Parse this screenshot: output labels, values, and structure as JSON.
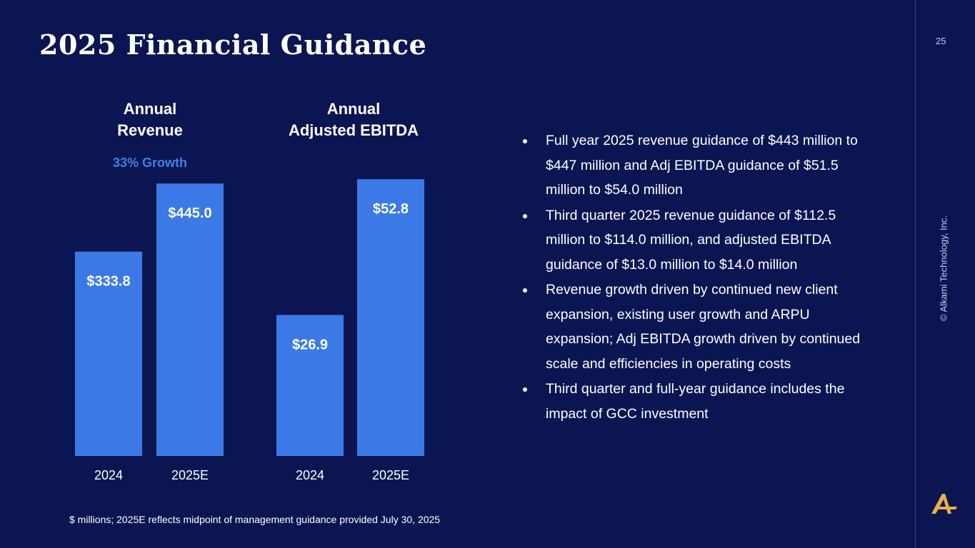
{
  "slide": {
    "title": "2025 Financial Guidance",
    "page_number": "25",
    "copyright": "© Alkami Technology, Inc.",
    "footnote": "$ millions; 2025E reflects midpoint of management guidance provided July 30, 2025",
    "logo_icon": "alkami-logo-icon"
  },
  "colors": {
    "background": "#0b1552",
    "bar": "#3b7ae6",
    "growth_text": "#3b82e6",
    "logo": "#e9b046"
  },
  "bullets": [
    "Full year 2025 revenue guidance of $443 million to $447 million and Adj EBITDA guidance of $51.5 million to $54.0 million",
    "Third quarter 2025 revenue guidance of $112.5 million to $114.0 million, and adjusted EBITDA guidance of $13.0 million to $14.0 million",
    "Revenue growth driven by continued new client expansion, existing user growth and ARPU expansion; Adj EBITDA growth driven by continued scale and efficiencies in operating costs",
    "Third quarter and full-year guidance includes the impact of GCC investment"
  ],
  "chart_data": [
    {
      "type": "bar",
      "title_lines": [
        "Annual",
        "Revenue"
      ],
      "annotation": "33% Growth",
      "categories": [
        "2024",
        "2025E"
      ],
      "values": [
        333.8,
        445.0
      ],
      "value_labels": [
        "$333.8",
        "$445.0"
      ],
      "units": "$ millions",
      "ylim": [
        0,
        535
      ]
    },
    {
      "type": "bar",
      "title_lines": [
        "Annual",
        "Adjusted EBITDA"
      ],
      "categories": [
        "2024",
        "2025E"
      ],
      "values": [
        26.9,
        52.8
      ],
      "value_labels": [
        "$26.9",
        "$52.8"
      ],
      "units": "$ millions",
      "ylim": [
        0,
        62.5
      ]
    }
  ]
}
